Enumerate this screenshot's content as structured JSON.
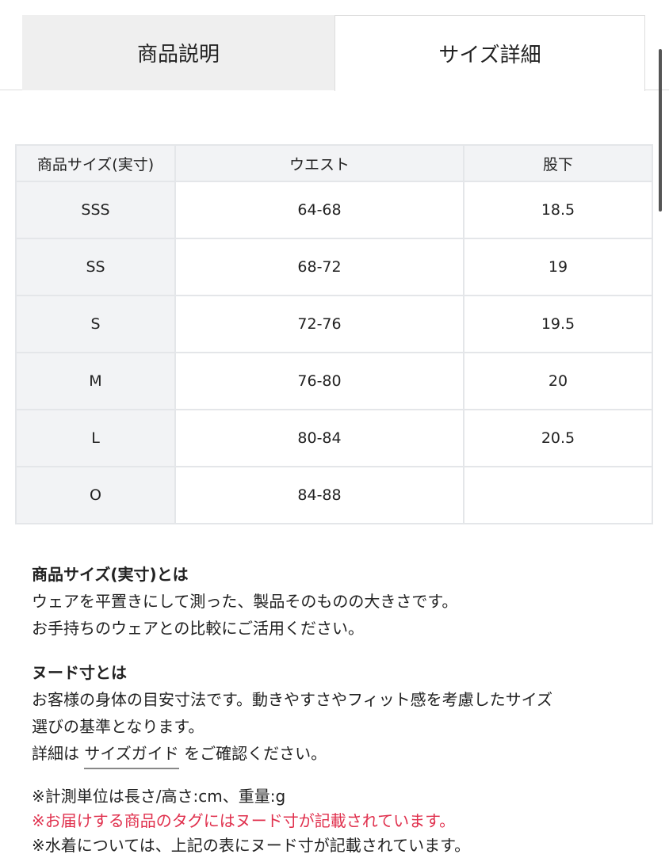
{
  "tabs": [
    {
      "label": "商品説明",
      "active": false
    },
    {
      "label": "サイズ詳細",
      "active": true
    }
  ],
  "table": {
    "headers": [
      "商品サイズ(実寸)",
      "ウエスト",
      "股下"
    ],
    "rows": [
      [
        "SSS",
        "64-68",
        "18.5"
      ],
      [
        "SS",
        "68-72",
        "19"
      ],
      [
        "S",
        "72-76",
        "19.5"
      ],
      [
        "M",
        "76-80",
        "20"
      ],
      [
        "L",
        "80-84",
        "20.5"
      ],
      [
        "O",
        "84-88",
        ""
      ]
    ]
  },
  "notes": {
    "actual_title": "商品サイズ(実寸)とは",
    "actual_line1": "ウェアを平置きにして測った、製品そのものの大きさです。",
    "actual_line2": "お手持ちのウェアとの比較にご活用ください。",
    "nude_title": "ヌード寸とは",
    "nude_line1": "お客様の身体の目安寸法です。動きやすさやフィット感を考慮したサイズ",
    "nude_line2": "選びの基準となります。",
    "detail_prefix": "詳細は ",
    "detail_link": "サイズガイド",
    "detail_suffix": " をご確認ください。",
    "unit_note": "※計測単位は長さ/高さ:cm、重量:g",
    "tag_note": "※お届けする商品のタグにはヌード寸が記載されています。",
    "swim_note": "※水着については、上記の表にヌード寸が記載されています。"
  },
  "colors": {
    "warning": "#e0304d"
  }
}
